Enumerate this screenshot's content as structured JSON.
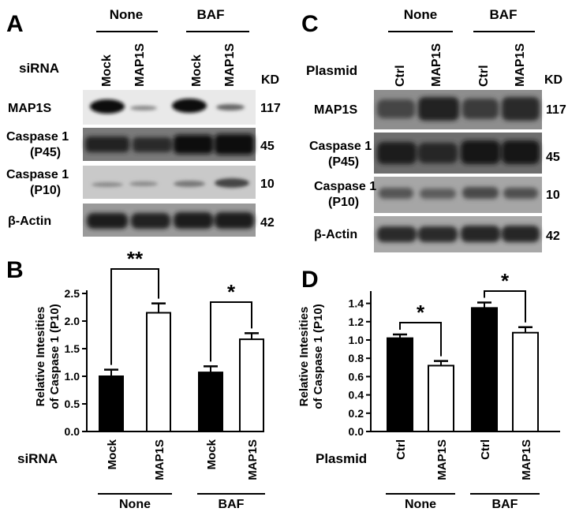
{
  "panelA": {
    "letter": "A",
    "groups": [
      "None",
      "BAF"
    ],
    "row_label": "siRNA",
    "lanes": [
      "Mock",
      "MAP1S",
      "Mock",
      "MAP1S"
    ],
    "kd_label": "KD",
    "blots": [
      {
        "label1": "MAP1S",
        "label2": "",
        "kd": "117"
      },
      {
        "label1": "Caspase 1",
        "label2": "(P45)",
        "kd": "45"
      },
      {
        "label1": "Caspase 1",
        "label2": "(P10)",
        "kd": "10"
      },
      {
        "label1": "β-Actin",
        "label2": "",
        "kd": "42"
      }
    ]
  },
  "panelC": {
    "letter": "C",
    "groups": [
      "None",
      "BAF"
    ],
    "row_label": "Plasmid",
    "lanes": [
      "Ctrl",
      "MAP1S",
      "Ctrl",
      "MAP1S"
    ],
    "kd_label": "KD",
    "blots": [
      {
        "label1": "MAP1S",
        "label2": "",
        "kd": "117"
      },
      {
        "label1": "Caspase 1",
        "label2": "(P45)",
        "kd": "45"
      },
      {
        "label1": "Caspase 1",
        "label2": "(P10)",
        "kd": "10"
      },
      {
        "label1": "β-Actin",
        "label2": "",
        "kd": "42"
      }
    ]
  },
  "panelB": {
    "letter": "B",
    "row_label": "siRNA",
    "chart_data": {
      "type": "bar",
      "categories": [
        "Mock",
        "MAP1S",
        "Mock",
        "MAP1S"
      ],
      "groups": [
        "None",
        "BAF"
      ],
      "values": [
        1.0,
        2.15,
        1.07,
        1.67
      ],
      "errors": [
        0.12,
        0.17,
        0.11,
        0.11
      ],
      "fill": [
        "#000000",
        "#ffffff",
        "#000000",
        "#ffffff"
      ],
      "ylabel_line1": "Relative Intesities",
      "ylabel_line2": "of Caspase 1 (P10)",
      "yticks": [
        "0.0",
        "0.5",
        "1.0",
        "1.5",
        "2.0",
        "2.5"
      ],
      "ylim": [
        0,
        2.5
      ],
      "significance": [
        "**",
        "*"
      ]
    }
  },
  "panelD": {
    "letter": "D",
    "row_label": "Plasmid",
    "chart_data": {
      "type": "bar",
      "categories": [
        "Ctrl",
        "MAP1S",
        "Ctrl",
        "MAP1S"
      ],
      "groups": [
        "None",
        "BAF"
      ],
      "values": [
        1.02,
        0.72,
        1.35,
        1.08
      ],
      "errors": [
        0.04,
        0.05,
        0.06,
        0.06
      ],
      "fill": [
        "#000000",
        "#ffffff",
        "#000000",
        "#ffffff"
      ],
      "ylabel_line1": "Relative Intesities",
      "ylabel_line2": "of Caspase 1 (P10)",
      "yticks": [
        "0.0",
        "0.2",
        "0.4",
        "0.6",
        "0.8",
        "1.0",
        "1.2",
        "1.4"
      ],
      "ylim": [
        0,
        1.5
      ],
      "significance": [
        "*",
        "*"
      ]
    }
  }
}
